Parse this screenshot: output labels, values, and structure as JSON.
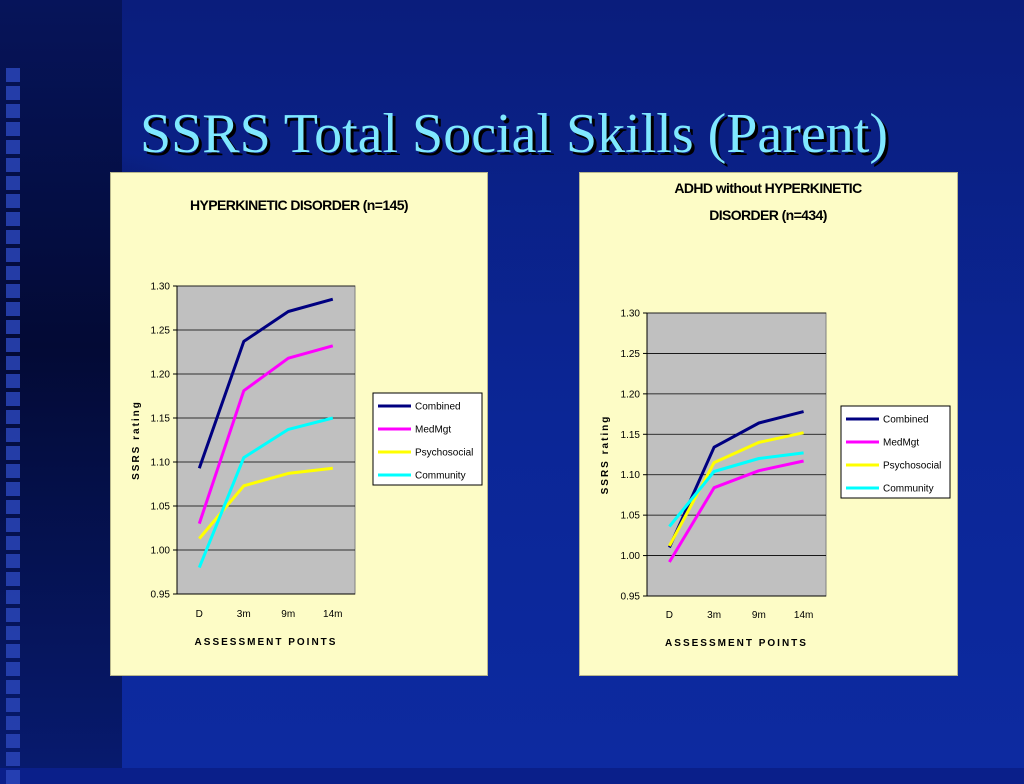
{
  "slide": {
    "title": "SSRS Total Social Skills (Parent)"
  },
  "colors": {
    "background": "#0a1f8a",
    "title": "#7fe8ff",
    "panel": "#fdfcc6",
    "plot_area": "#c0c0c0"
  },
  "chart_data": [
    {
      "type": "line",
      "title": "HYPERKINETIC DISORDER (n=145)",
      "title_lines": [
        "HYPERKINETIC DISORDER (n=145)"
      ],
      "xlabel": "ASSESSMENT POINTS",
      "ylabel": "SSRS rating",
      "categories": [
        "D",
        "3m",
        "9m",
        "14m"
      ],
      "ylim": [
        0.95,
        1.3
      ],
      "yticks": [
        "1.30",
        "1.25",
        "1.20",
        "1.15",
        "1.10",
        "1.05",
        "1.00",
        "0.95"
      ],
      "grid": true,
      "legend_position": "right",
      "series": [
        {
          "name": "Combined",
          "color": "#000080",
          "values": [
            1.093,
            1.237,
            1.271,
            1.285
          ]
        },
        {
          "name": "MedMgt",
          "color": "#ff00ff",
          "values": [
            1.03,
            1.181,
            1.218,
            1.232
          ]
        },
        {
          "name": "Psychosocial",
          "color": "#ffff00",
          "values": [
            1.013,
            1.073,
            1.087,
            1.093
          ]
        },
        {
          "name": "Community",
          "color": "#00ffff",
          "values": [
            0.98,
            1.105,
            1.137,
            1.15
          ]
        }
      ]
    },
    {
      "type": "line",
      "title": "ADHD without HYPERKINETIC DISORDER (n=434)",
      "title_lines": [
        "ADHD without HYPERKINETIC",
        "DISORDER (n=434)"
      ],
      "xlabel": "ASSESSMENT POINTS",
      "ylabel": "SSRS rating",
      "categories": [
        "D",
        "3m",
        "9m",
        "14m"
      ],
      "ylim": [
        0.95,
        1.3
      ],
      "yticks": [
        "1.30",
        "1.25",
        "1.20",
        "1.15",
        "1.10",
        "1.05",
        "1.00",
        "0.95"
      ],
      "grid": true,
      "legend_position": "right",
      "series": [
        {
          "name": "Combined",
          "color": "#000080",
          "values": [
            1.01,
            1.134,
            1.164,
            1.178
          ]
        },
        {
          "name": "MedMgt",
          "color": "#ff00ff",
          "values": [
            0.992,
            1.084,
            1.105,
            1.117
          ]
        },
        {
          "name": "Psychosocial",
          "color": "#ffff00",
          "values": [
            1.012,
            1.115,
            1.14,
            1.152
          ]
        },
        {
          "name": "Community",
          "color": "#00ffff",
          "values": [
            1.036,
            1.104,
            1.12,
            1.127
          ]
        }
      ]
    }
  ]
}
